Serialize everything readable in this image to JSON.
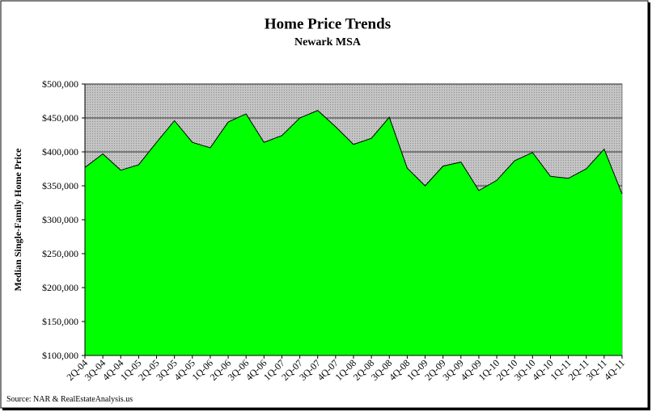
{
  "chart_data": {
    "type": "area",
    "title": "Home Price Trends",
    "subtitle": "Newark MSA",
    "y_label": "Median Single-Family Home Price",
    "source": "Source: NAR & RealEstateAnalysis.us",
    "categories": [
      "2Q-04",
      "3Q-04",
      "4Q-04",
      "1Q-05",
      "2Q-05",
      "3Q-05",
      "4Q-05",
      "1Q-06",
      "2Q-06",
      "3Q-06",
      "4Q-06",
      "1Q-07",
      "2Q-07",
      "3Q-07",
      "4Q-07",
      "1Q-08",
      "2Q-08",
      "3Q-08",
      "4Q-08",
      "1Q-09",
      "2Q-09",
      "3Q-09",
      "4Q-09",
      "1Q-10",
      "2Q-10",
      "3Q-10",
      "4Q-10",
      "1Q-11",
      "2Q-11",
      "3Q-11",
      "4Q-11"
    ],
    "values": [
      377000,
      397000,
      373000,
      381000,
      414000,
      446000,
      414000,
      406000,
      444000,
      456000,
      414000,
      424000,
      450000,
      461000,
      437000,
      411000,
      420000,
      451000,
      376000,
      350000,
      379000,
      385000,
      343000,
      358000,
      387000,
      399000,
      364000,
      361000,
      375000,
      404000,
      338000
    ],
    "color": "#00ff00",
    "ylim": [
      100000,
      500000
    ],
    "yticks": [
      {
        "value": 100000,
        "label": "$100,000"
      },
      {
        "value": 150000,
        "label": "$150,000"
      },
      {
        "value": 200000,
        "label": "$200,000"
      },
      {
        "value": 250000,
        "label": "$250,000"
      },
      {
        "value": 300000,
        "label": "$300,000"
      },
      {
        "value": 350000,
        "label": "$350,000"
      },
      {
        "value": 400000,
        "label": "$400,000"
      },
      {
        "value": 450000,
        "label": "$450,000"
      },
      {
        "value": 500000,
        "label": "$500,000"
      }
    ],
    "grid": true
  }
}
